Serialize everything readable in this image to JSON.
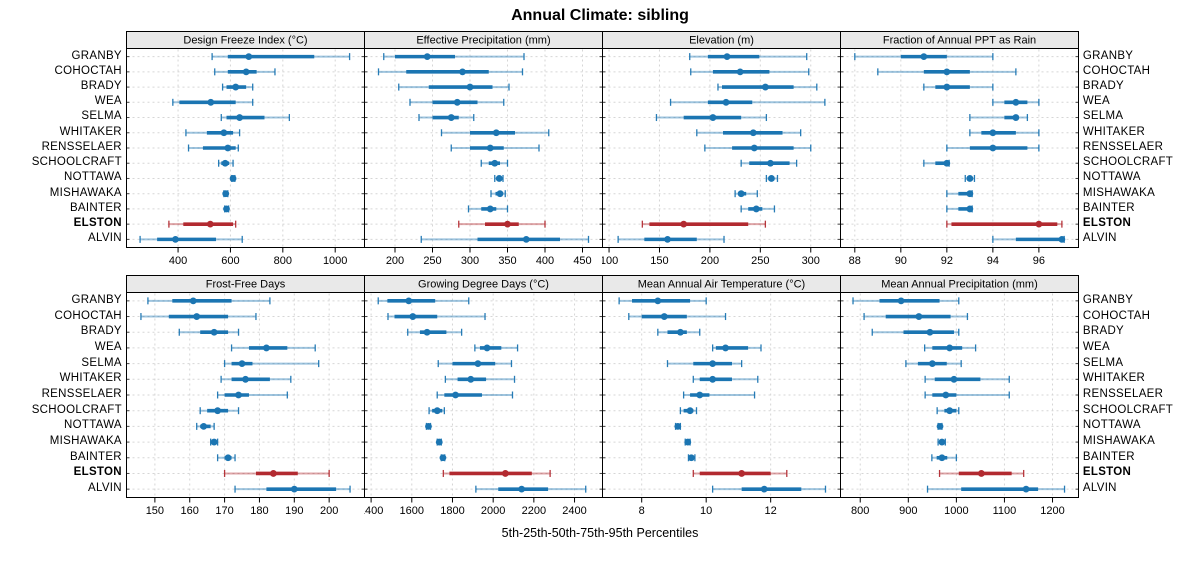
{
  "title": "Annual Climate: sibling",
  "caption": "5th-25th-50th-75th-95th Percentiles",
  "sites": [
    "GRANBY",
    "COHOCTAH",
    "BRADY",
    "WEA",
    "SELMA",
    "WHITAKER",
    "RENSSELAER",
    "SCHOOLCRAFT",
    "NOTTAWA",
    "MISHAWAKA",
    "BAINTER",
    "ELSTON",
    "ALVIN"
  ],
  "highlight_site": "ELSTON",
  "colors": {
    "series_blue": "#1b75b2",
    "highlight_red": "#b22a30",
    "strip_bg": "#e9e9e9",
    "grid": "#d6d6d6",
    "panel_border": "#000000"
  },
  "chart_data": {
    "type": "dotplot-intervals",
    "percentiles": [
      5,
      25,
      50,
      75,
      95
    ],
    "legend": "5th-25th-50th-75th-95th Percentiles",
    "layout": {
      "rows": 2,
      "cols": 4
    },
    "panels": [
      {
        "title": "Design Freeze Index (°C)",
        "xlim": [
          205,
          1110
        ],
        "ticks": [
          400,
          600,
          800,
          1000
        ],
        "series": {
          "GRANBY": [
            530,
            590,
            670,
            920,
            1055
          ],
          "COHOCTAH": [
            540,
            590,
            660,
            700,
            770
          ],
          "BRADY": [
            570,
            585,
            620,
            660,
            685
          ],
          "WEA": [
            380,
            405,
            525,
            620,
            685
          ],
          "SELMA": [
            565,
            585,
            635,
            730,
            825
          ],
          "WHITAKER": [
            430,
            510,
            575,
            610,
            635
          ],
          "RENSSELAER": [
            440,
            495,
            590,
            620,
            630
          ],
          "SCHOOLCRAFT": [
            555,
            565,
            580,
            595,
            610
          ],
          "NOTTAWA": [
            605,
            608,
            610,
            613,
            617
          ],
          "MISHAWAKA": [
            575,
            579,
            582,
            585,
            590
          ],
          "BAINTER": [
            578,
            582,
            585,
            589,
            593
          ],
          "ELSTON": [
            365,
            420,
            523,
            610,
            620
          ],
          "ALVIN": [
            255,
            320,
            390,
            545,
            645
          ]
        }
      },
      {
        "title": "Effective Precipitation (mm)",
        "xlim": [
          160,
          476
        ],
        "ticks": [
          200,
          250,
          300,
          350,
          400,
          450
        ],
        "series": {
          "GRANBY": [
            185,
            200,
            243,
            280,
            372
          ],
          "COHOCTAH": [
            178,
            215,
            290,
            325,
            370
          ],
          "BRADY": [
            205,
            245,
            300,
            330,
            352
          ],
          "WEA": [
            220,
            250,
            283,
            310,
            345
          ],
          "SELMA": [
            232,
            250,
            275,
            285,
            305
          ],
          "WHITAKER": [
            262,
            300,
            335,
            360,
            405
          ],
          "RENSSELAER": [
            275,
            300,
            327,
            345,
            392
          ],
          "SCHOOLCRAFT": [
            315,
            325,
            333,
            340,
            350
          ],
          "NOTTAWA": [
            333,
            336,
            339,
            341,
            344
          ],
          "MISHAWAKA": [
            328,
            334,
            340,
            343,
            347
          ],
          "BAINTER": [
            298,
            315,
            327,
            335,
            350
          ],
          "ELSTON": [
            285,
            320,
            350,
            365,
            400
          ],
          "ALVIN": [
            235,
            310,
            375,
            420,
            458
          ]
        }
      },
      {
        "title": "Elevation (m)",
        "xlim": [
          94,
          329
        ],
        "ticks": [
          100,
          150,
          200,
          250,
          300
        ],
        "series": {
          "GRANBY": [
            180,
            198,
            217,
            249,
            296
          ],
          "COHOCTAH": [
            181,
            203,
            230,
            259,
            298
          ],
          "BRADY": [
            208,
            212,
            255,
            283,
            306
          ],
          "WEA": [
            161,
            198,
            216,
            242,
            314
          ],
          "SELMA": [
            147,
            174,
            203,
            231,
            256
          ],
          "WHITAKER": [
            187,
            213,
            243,
            272,
            290
          ],
          "RENSSELAER": [
            195,
            222,
            244,
            283,
            300
          ],
          "SCHOOLCRAFT": [
            231,
            239,
            260,
            279,
            286
          ],
          "NOTTAWA": [
            256,
            258,
            261,
            264,
            267
          ],
          "MISHAWAKA": [
            225,
            228,
            231,
            236,
            247
          ],
          "BAINTER": [
            231,
            238,
            246,
            252,
            264
          ],
          "ELSTON": [
            133,
            140,
            174,
            238,
            255
          ],
          "ALVIN": [
            109,
            135,
            158,
            187,
            214
          ]
        }
      },
      {
        "title": "Fraction of Annual PPT as Rain",
        "xlim": [
          87.4,
          97.7
        ],
        "ticks": [
          88,
          90,
          92,
          94,
          96
        ],
        "series": {
          "GRANBY": [
            88,
            90,
            91,
            92,
            94
          ],
          "COHOCTAH": [
            89,
            91,
            92,
            93,
            95
          ],
          "BRADY": [
            91,
            91.5,
            92,
            93,
            94
          ],
          "WEA": [
            94,
            94.5,
            95,
            95.5,
            96
          ],
          "SELMA": [
            93,
            94.5,
            95,
            95,
            95.5
          ],
          "WHITAKER": [
            93,
            93.5,
            94,
            95,
            96
          ],
          "RENSSELAER": [
            92,
            93,
            94,
            95.5,
            96
          ],
          "SCHOOLCRAFT": [
            91,
            91.5,
            92,
            92,
            92.1
          ],
          "NOTTAWA": [
            92.8,
            92.9,
            93,
            93.1,
            93.2
          ],
          "MISHAWAKA": [
            92,
            92.5,
            93,
            93,
            93.1
          ],
          "BAINTER": [
            92,
            92.5,
            93,
            93,
            93.1
          ],
          "ELSTON": [
            92,
            92.2,
            96,
            96.8,
            97
          ],
          "ALVIN": [
            94,
            95,
            97,
            97,
            97.1
          ]
        }
      },
      {
        "title": "Frost-Free Days",
        "xlim": [
          142,
          210
        ],
        "ticks": [
          150,
          160,
          170,
          180,
          190,
          200
        ],
        "series": {
          "GRANBY": [
            148,
            155,
            161,
            172,
            183
          ],
          "COHOCTAH": [
            146,
            154,
            162,
            171,
            179
          ],
          "BRADY": [
            157,
            163,
            167,
            171,
            174
          ],
          "WEA": [
            172,
            177,
            182,
            188,
            196
          ],
          "SELMA": [
            170,
            172,
            175,
            178,
            197
          ],
          "WHITAKER": [
            169,
            172,
            176,
            183,
            189
          ],
          "RENSSELAER": [
            168,
            170,
            174,
            177,
            188
          ],
          "SCHOOLCRAFT": [
            163,
            165,
            168,
            171,
            174
          ],
          "NOTTAWA": [
            162,
            163,
            164,
            166,
            167
          ],
          "MISHAWAKA": [
            166,
            166.5,
            167,
            167.5,
            168
          ],
          "BAINTER": [
            168,
            170,
            171,
            172,
            173
          ],
          "ELSTON": [
            170,
            179,
            184,
            191,
            200
          ],
          "ALVIN": [
            173,
            182,
            190,
            202,
            206
          ]
        }
      },
      {
        "title": "Growing Degree Days (°C)",
        "xlim": [
          1370,
          2535
        ],
        "ticks": [
          1400,
          1600,
          1800,
          2000,
          2200,
          2400
        ],
        "series": {
          "GRANBY": [
            1435,
            1480,
            1585,
            1715,
            1880
          ],
          "COHOCTAH": [
            1483,
            1515,
            1605,
            1725,
            1960
          ],
          "BRADY": [
            1580,
            1640,
            1675,
            1770,
            1845
          ],
          "WEA": [
            1910,
            1935,
            1970,
            2040,
            2120
          ],
          "SELMA": [
            1730,
            1800,
            1925,
            2010,
            2090
          ],
          "WHITAKER": [
            1765,
            1825,
            1890,
            1965,
            2105
          ],
          "RENSSELAER": [
            1725,
            1760,
            1815,
            1945,
            2095
          ],
          "SCHOOLCRAFT": [
            1685,
            1700,
            1725,
            1750,
            1760
          ],
          "NOTTAWA": [
            1672,
            1678,
            1682,
            1687,
            1692
          ],
          "MISHAWAKA": [
            1725,
            1731,
            1735,
            1739,
            1745
          ],
          "BAINTER": [
            1745,
            1749,
            1753,
            1757,
            1762
          ],
          "ELSTON": [
            1755,
            1785,
            2060,
            2190,
            2280
          ],
          "ALVIN": [
            1915,
            2025,
            2140,
            2270,
            2455
          ]
        }
      },
      {
        "title": "Mean Annual Air Temperature (°C)",
        "xlim": [
          6.8,
          14.15
        ],
        "ticks": [
          8,
          10,
          12
        ],
        "series": {
          "GRANBY": [
            7.3,
            7.7,
            8.5,
            9.5,
            10.0
          ],
          "COHOCTAH": [
            7.6,
            8.0,
            8.7,
            9.4,
            10.6
          ],
          "BRADY": [
            8.5,
            8.8,
            9.2,
            9.4,
            9.8
          ],
          "WEA": [
            10.2,
            10.3,
            10.6,
            11.3,
            11.7
          ],
          "SELMA": [
            8.8,
            9.6,
            10.2,
            10.8,
            11.1
          ],
          "WHITAKER": [
            9.6,
            9.8,
            10.2,
            10.8,
            11.6
          ],
          "RENSSELAER": [
            9.3,
            9.5,
            9.8,
            10.1,
            11.5
          ],
          "SCHOOLCRAFT": [
            9.2,
            9.3,
            9.5,
            9.6,
            9.7
          ],
          "NOTTAWA": [
            9.05,
            9.1,
            9.12,
            9.15,
            9.2
          ],
          "MISHAWAKA": [
            9.35,
            9.4,
            9.43,
            9.46,
            9.5
          ],
          "BAINTER": [
            9.45,
            9.5,
            9.54,
            9.58,
            9.65
          ],
          "ELSTON": [
            9.6,
            9.8,
            11.1,
            12.0,
            12.5
          ],
          "ALVIN": [
            10.2,
            11.1,
            11.8,
            12.95,
            13.7
          ]
        }
      },
      {
        "title": "Mean Annual Precipitation (mm)",
        "xlim": [
          760,
          1253
        ],
        "ticks": [
          800,
          900,
          1000,
          1100,
          1200
        ],
        "series": {
          "GRANBY": [
            785,
            840,
            885,
            965,
            1005
          ],
          "COHOCTAH": [
            808,
            853,
            922,
            988,
            1023
          ],
          "BRADY": [
            825,
            890,
            945,
            995,
            1005
          ],
          "WEA": [
            934,
            950,
            986,
            1012,
            1040
          ],
          "SELMA": [
            895,
            920,
            950,
            980,
            1010
          ],
          "WHITAKER": [
            935,
            955,
            995,
            1050,
            1110
          ],
          "RENSSELAER": [
            935,
            950,
            978,
            1000,
            1110
          ],
          "SCHOOLCRAFT": [
            960,
            975,
            986,
            1000,
            1005
          ],
          "NOTTAWA": [
            962,
            964,
            966,
            968,
            970
          ],
          "MISHAWAKA": [
            962,
            966,
            970,
            974,
            977
          ],
          "BAINTER": [
            949,
            959,
            970,
            981,
            1000
          ],
          "ELSTON": [
            965,
            1005,
            1052,
            1115,
            1140
          ],
          "ALVIN": [
            940,
            1010,
            1145,
            1170,
            1225
          ]
        }
      }
    ]
  }
}
